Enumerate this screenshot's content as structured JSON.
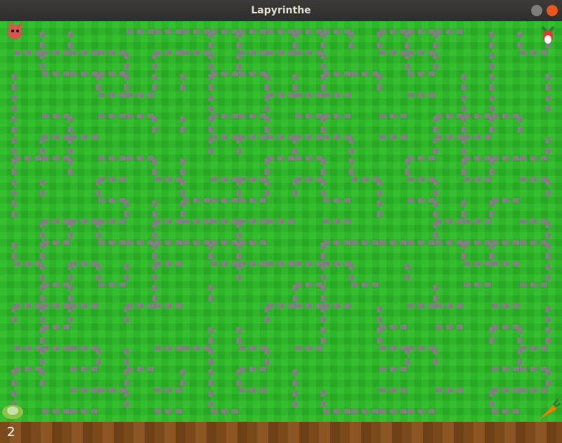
{
  "window": {
    "title": "Lapyrinthe"
  },
  "status": {
    "score": 2
  }
}
